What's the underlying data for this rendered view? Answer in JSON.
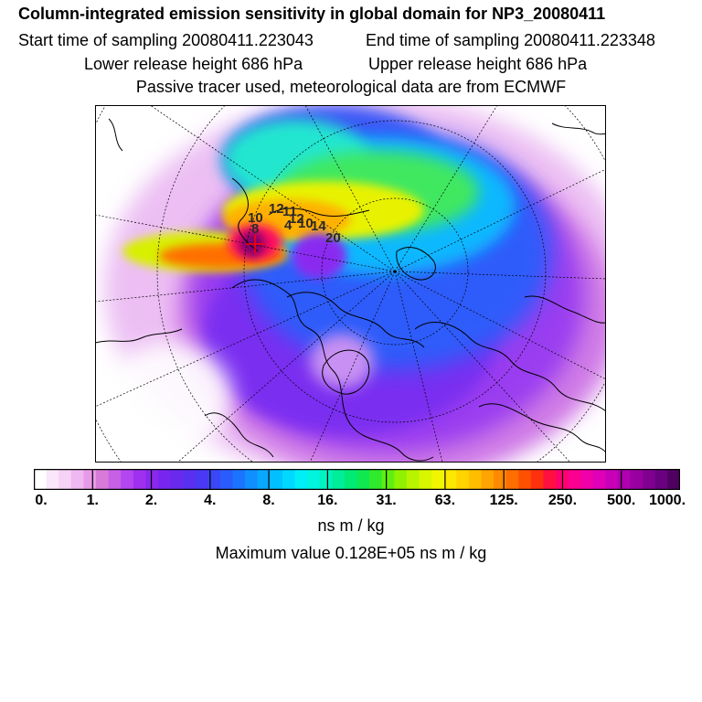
{
  "header": {
    "title": "Column-integrated emission sensitivity in global domain for NP3_20080411",
    "start_time": "Start time of sampling 20080411.223043",
    "end_time": "End time of sampling 20080411.223348",
    "lower_release": "Lower release height  686 hPa",
    "upper_release": "Upper release height  686 hPa",
    "tracer_note": "Passive tracer used, meteorological data are from ECMWF"
  },
  "map": {
    "point_labels": [
      "10",
      "12",
      "11",
      "12",
      "10",
      "14",
      "20",
      "8",
      "4"
    ]
  },
  "colorbar": {
    "tick_labels": [
      "0.",
      "1.",
      "2.",
      "4.",
      "8.",
      "16.",
      "31.",
      "63.",
      "125.",
      "250.",
      "500.",
      "1000."
    ],
    "colors": [
      "#ffffff",
      "#fbe6fb",
      "#f6d2f6",
      "#f0b8f0",
      "#e79ae7",
      "#d87ad8",
      "#c860e6",
      "#b545f0",
      "#a030f0",
      "#8a28f0",
      "#7826ee",
      "#6a2aee",
      "#5a30f0",
      "#4a38f4",
      "#3a48f8",
      "#2a5cfc",
      "#1a74ff",
      "#1090ff",
      "#08a8ff",
      "#00c0ff",
      "#00d8ff",
      "#00eef6",
      "#00f4de",
      "#00f2c0",
      "#00ee9a",
      "#00ea74",
      "#10e850",
      "#30ea2c",
      "#60ee10",
      "#90f200",
      "#b8f400",
      "#d8f600",
      "#f0f600",
      "#fce800",
      "#ffd400",
      "#ffbe00",
      "#ffa400",
      "#ff8a00",
      "#ff6e00",
      "#ff5000",
      "#ff3010",
      "#ff1040",
      "#ff0070",
      "#fc0090",
      "#f000a8",
      "#e000b8",
      "#c800b8",
      "#b000b0",
      "#9800a0",
      "#800090",
      "#680080",
      "#500060"
    ],
    "units": "ns m / kg",
    "max_value": "Maximum value  0.128E+05 ns m / kg"
  }
}
